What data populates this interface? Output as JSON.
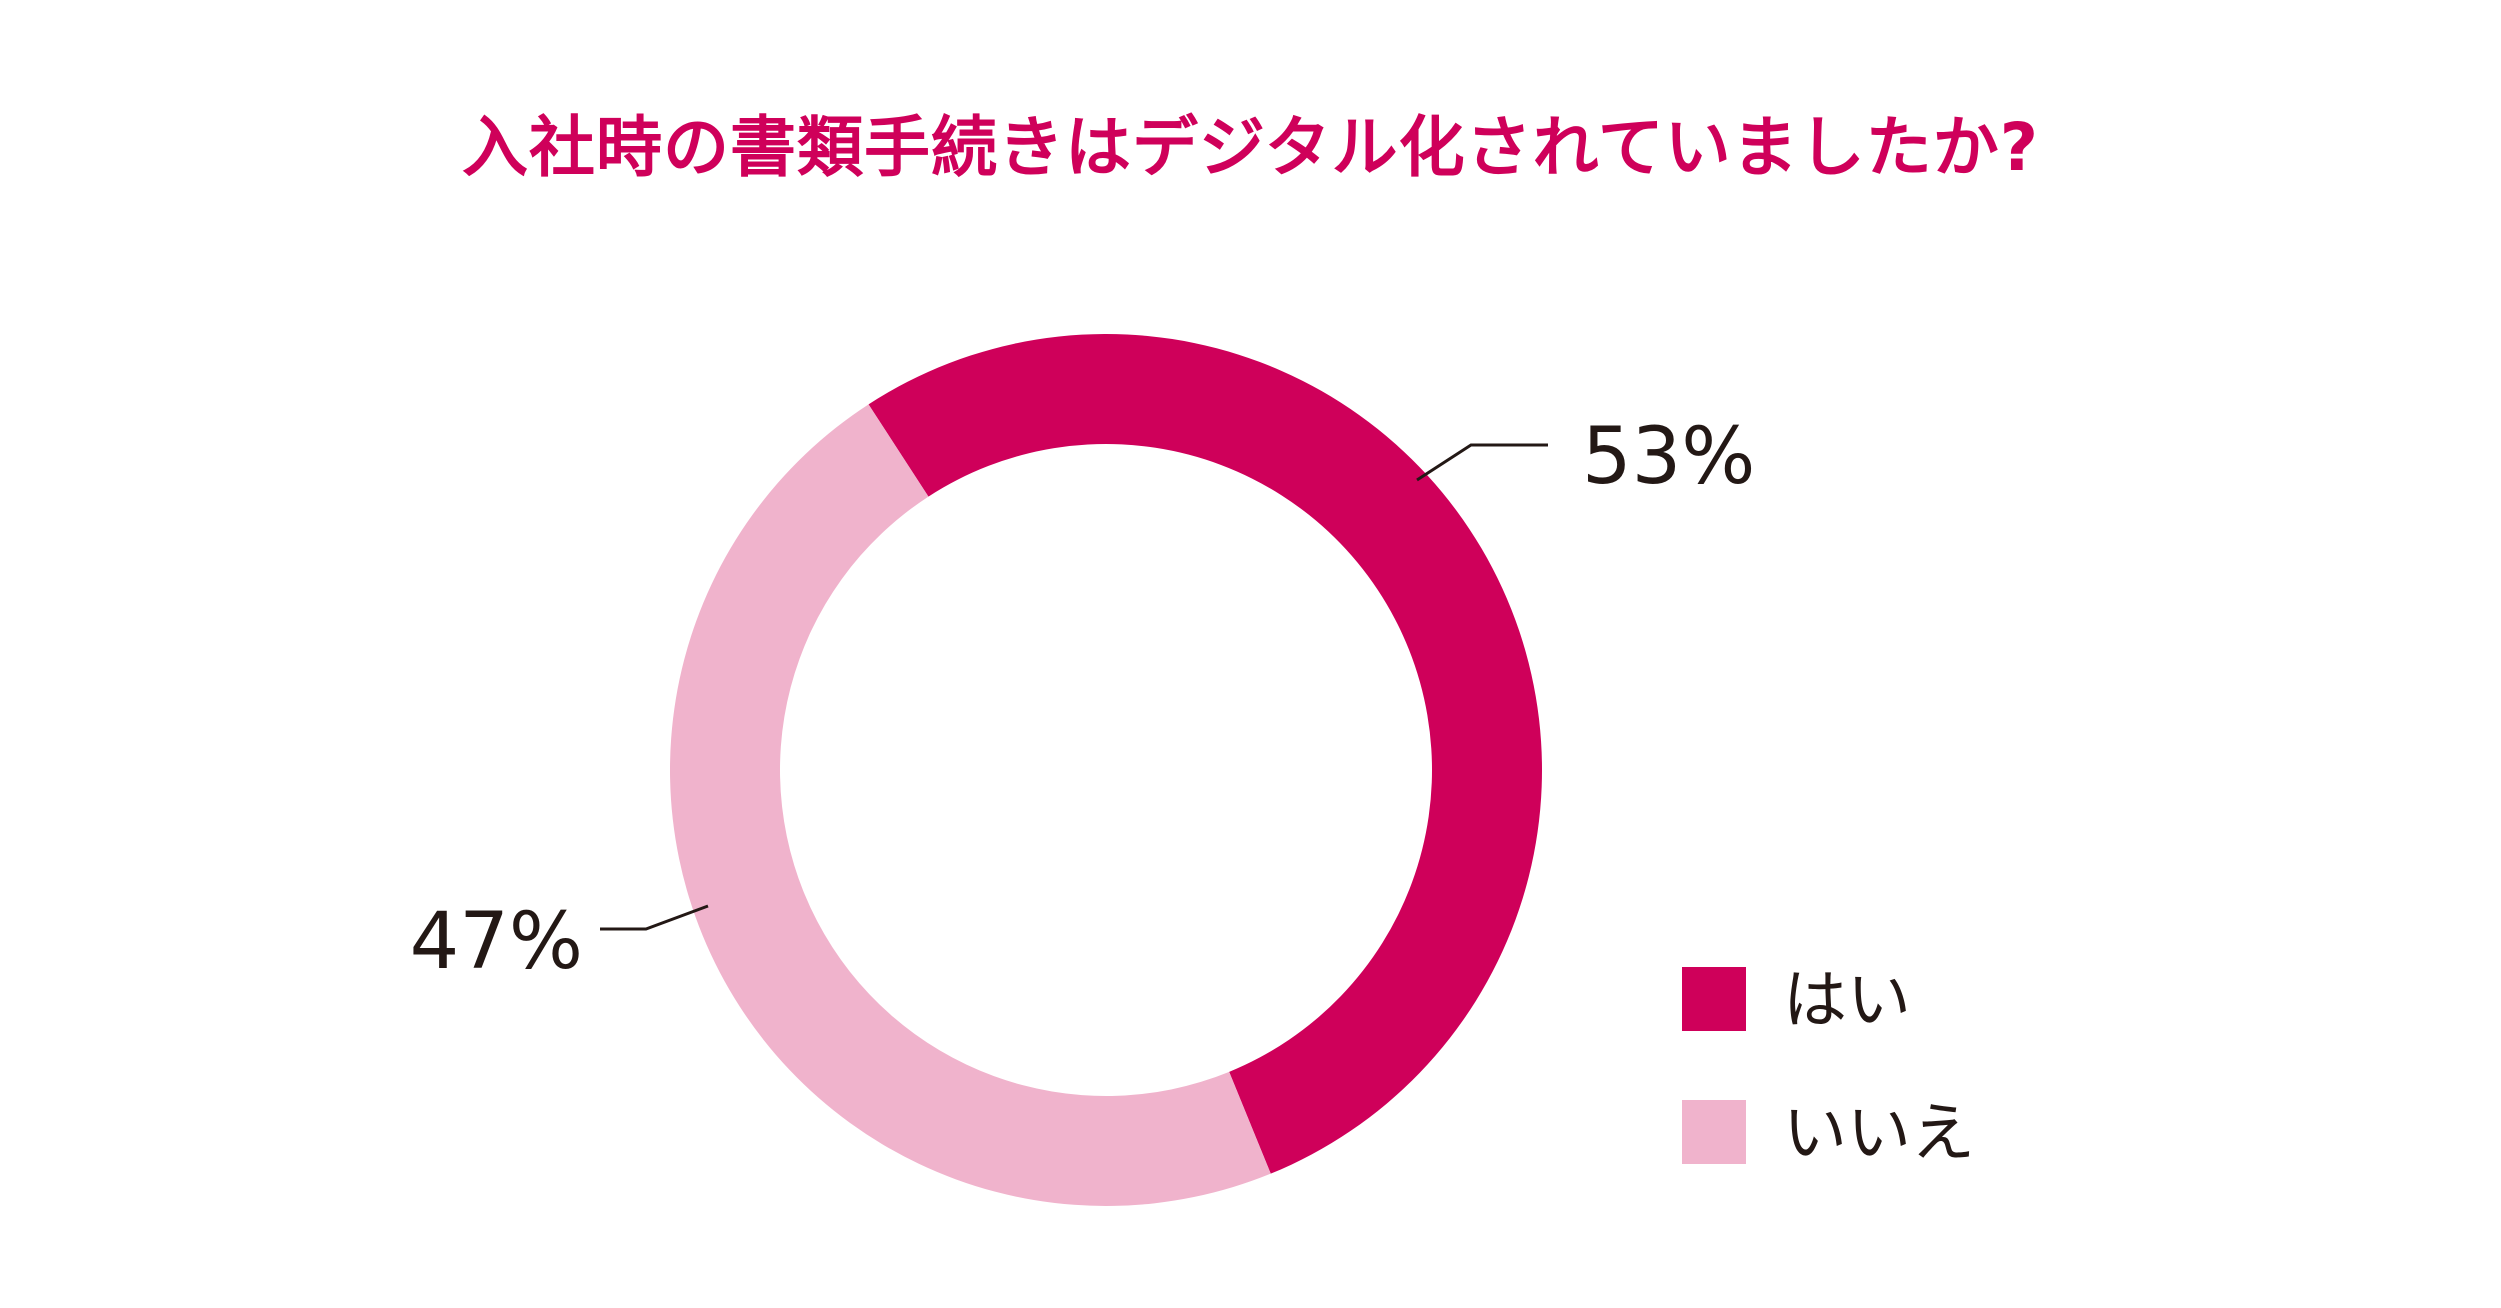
{
  "chart_data": {
    "type": "pie",
    "title": "入社時の書類手続きはデジタル化されていましたか?",
    "categories": [
      "はい",
      "いいえ"
    ],
    "values": [
      53,
      47
    ],
    "data_labels": [
      "53%",
      "47%"
    ],
    "colors": [
      "#cf005a",
      "#f0b3cc"
    ],
    "legend_position": "bottom-right",
    "donut": true
  },
  "colors": {
    "title": "#cf005a",
    "label_text": "#231815",
    "leader_line": "#231815"
  }
}
